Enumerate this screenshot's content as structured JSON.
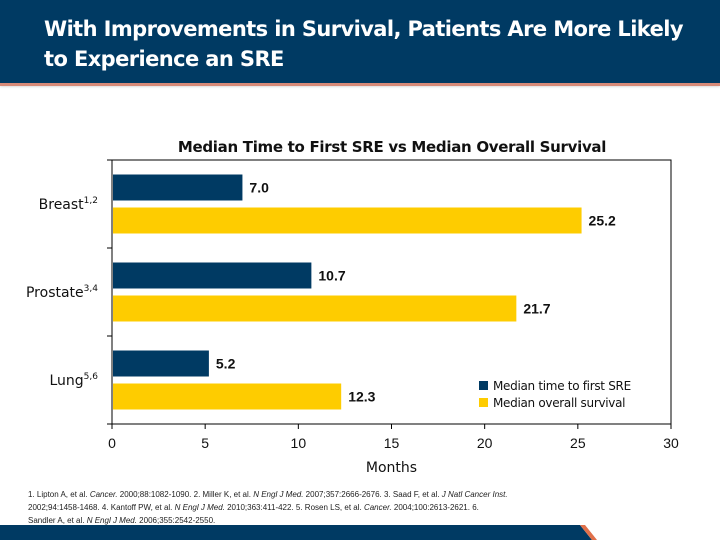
{
  "slide": {
    "title": "With Improvements in Survival, Patients Are More Likely to Experience an SRE",
    "colors": {
      "header": "#003a63",
      "accent": "#d78a78",
      "footer_stripe": "#e0704a"
    }
  },
  "chart_data": {
    "type": "bar",
    "orientation": "horizontal",
    "title": "Median Time to First SRE vs Median Overall Survival",
    "categories": [
      "Breast",
      "Prostate",
      "Lung"
    ],
    "category_superscripts": [
      "1,2",
      "3,4",
      "5,6"
    ],
    "series": [
      {
        "name": "Median time to first SRE",
        "color": "#003a63",
        "values": [
          7.0,
          10.7,
          5.2
        ],
        "labels": [
          "7.0",
          "10.7",
          "5.2"
        ]
      },
      {
        "name": "Median overall survival",
        "color": "#fecc00",
        "values": [
          25.2,
          21.7,
          12.3
        ],
        "labels": [
          "25.2",
          "21.7",
          "12.3"
        ]
      }
    ],
    "xlabel": "Months",
    "ylabel": "",
    "xlim": [
      0,
      30
    ],
    "xticks": [
      0,
      5,
      10,
      15,
      20,
      25,
      30
    ],
    "grid": false,
    "legend_position": "bottom-right"
  },
  "footnote": {
    "refs": [
      {
        "n": "1.",
        "text": "Lipton A, et al. ",
        "journal": "Cancer.",
        "cite": " 2000;88:1082-1090."
      },
      {
        "n": "2.",
        "text": "Miller K, et al. ",
        "journal": "N Engl J Med.",
        "cite": " 2007;357:2666-2676."
      },
      {
        "n": "3.",
        "text": "Saad F, et al. ",
        "journal": "J Natl Cancer Inst.",
        "cite": " 2002;94:1458-1468."
      },
      {
        "n": "4.",
        "text": "Kantoff PW, et al. ",
        "journal": "N Engl J Med.",
        "cite": " 2010;363:411-422."
      },
      {
        "n": "5.",
        "text": "Rosen LS, et al. ",
        "journal": "Cancer.",
        "cite": " 2004;100:2613-2621."
      },
      {
        "n": "6.",
        "text": "Sandler A, et al. ",
        "journal": "N Engl J Med.",
        "cite": " 2006;355:2542-2550."
      }
    ]
  }
}
